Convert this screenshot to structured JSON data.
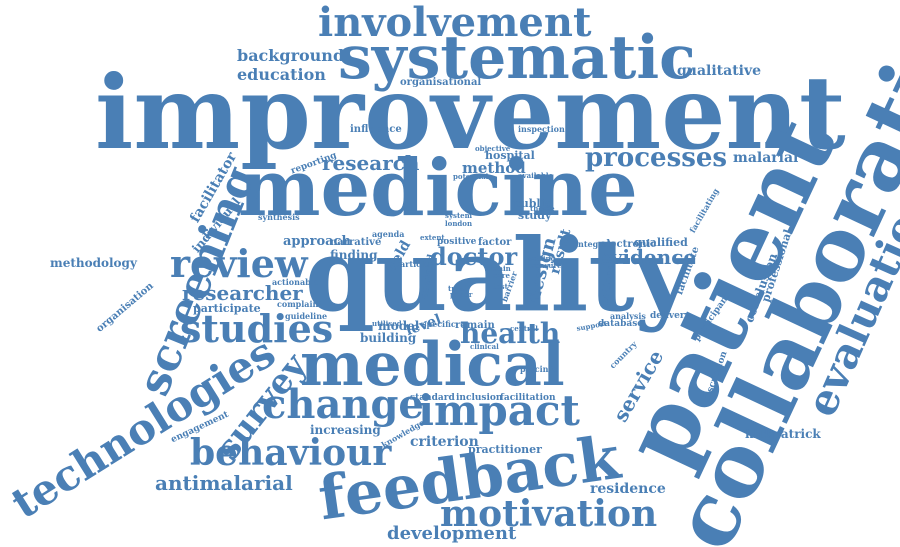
{
  "word_color": "#4a7fb5",
  "background_color": "#ffffff",
  "words": [
    {
      "text": "improvement"
    },
    {
      "text": "medicine"
    },
    {
      "text": "quality"
    },
    {
      "text": "patient"
    },
    {
      "text": "collaborative"
    },
    {
      "text": "systematic"
    },
    {
      "text": "involvement"
    },
    {
      "text": "medical"
    },
    {
      "text": "feedback"
    },
    {
      "text": "technologies"
    },
    {
      "text": "screening"
    },
    {
      "text": "evaluation"
    },
    {
      "text": "review"
    },
    {
      "text": "studies"
    },
    {
      "text": "change"
    },
    {
      "text": "impact"
    },
    {
      "text": "behaviour"
    },
    {
      "text": "survey"
    },
    {
      "text": "motivation"
    },
    {
      "text": "processes"
    },
    {
      "text": "health"
    },
    {
      "text": "doctor"
    },
    {
      "text": "research"
    },
    {
      "text": "researcher"
    },
    {
      "text": "evidence"
    },
    {
      "text": "antimalarial"
    },
    {
      "text": "development"
    },
    {
      "text": "service"
    },
    {
      "text": "background"
    },
    {
      "text": "education"
    },
    {
      "text": "qualitative"
    },
    {
      "text": "malarial"
    },
    {
      "text": "approach"
    },
    {
      "text": "methodology"
    },
    {
      "text": "kirkpatrick"
    },
    {
      "text": "residence"
    },
    {
      "text": "criterion"
    },
    {
      "text": "facilitator"
    },
    {
      "text": "individual"
    },
    {
      "text": "design"
    },
    {
      "text": "conclusion"
    },
    {
      "text": "professional"
    },
    {
      "text": "method"
    },
    {
      "text": "hospital"
    },
    {
      "text": "public"
    },
    {
      "text": "study"
    },
    {
      "text": "finding"
    },
    {
      "text": "field"
    },
    {
      "text": "building"
    },
    {
      "text": "model"
    },
    {
      "text": "level"
    },
    {
      "text": "increasing"
    },
    {
      "text": "practitioner"
    },
    {
      "text": "participate"
    },
    {
      "text": "narrative"
    },
    {
      "text": "qualified"
    },
    {
      "text": "organisation"
    },
    {
      "text": "engagement"
    },
    {
      "text": "influence"
    },
    {
      "text": "reporting"
    },
    {
      "text": "organisational"
    },
    {
      "text": "standard"
    },
    {
      "text": "inclusion"
    },
    {
      "text": "facilitation"
    },
    {
      "text": "knowledge"
    },
    {
      "text": "complaint"
    },
    {
      "text": "actionable"
    },
    {
      "text": "guideline"
    },
    {
      "text": "england"
    },
    {
      "text": "result"
    },
    {
      "text": "national"
    },
    {
      "text": "facilitate"
    },
    {
      "text": "participant"
    },
    {
      "text": "discussion"
    },
    {
      "text": "country"
    },
    {
      "text": "delivery"
    },
    {
      "text": "analysis"
    },
    {
      "text": "database"
    },
    {
      "text": "support"
    },
    {
      "text": "central"
    },
    {
      "text": "facilitating"
    },
    {
      "text": "synthesis"
    },
    {
      "text": "system"
    },
    {
      "text": "london"
    },
    {
      "text": "agenda"
    },
    {
      "text": "extent"
    },
    {
      "text": "positive"
    },
    {
      "text": "factor"
    },
    {
      "text": "integral"
    },
    {
      "text": "electronic"
    },
    {
      "text": "article"
    },
    {
      "text": "barrier"
    },
    {
      "text": "remain"
    },
    {
      "text": "specific"
    },
    {
      "text": "utilised"
    },
    {
      "text": "clinical"
    },
    {
      "text": "psycinfo"
    },
    {
      "text": "potential"
    },
    {
      "text": "available"
    },
    {
      "text": "objective"
    },
    {
      "text": "inspection"
    },
    {
      "text": "setting"
    },
    {
      "text": "theme"
    },
    {
      "text": "main"
    },
    {
      "text": "care"
    },
    {
      "text": "trust"
    },
    {
      "text": "paper"
    },
    {
      "text": "test"
    },
    {
      "text": "measure"
    }
  ]
}
